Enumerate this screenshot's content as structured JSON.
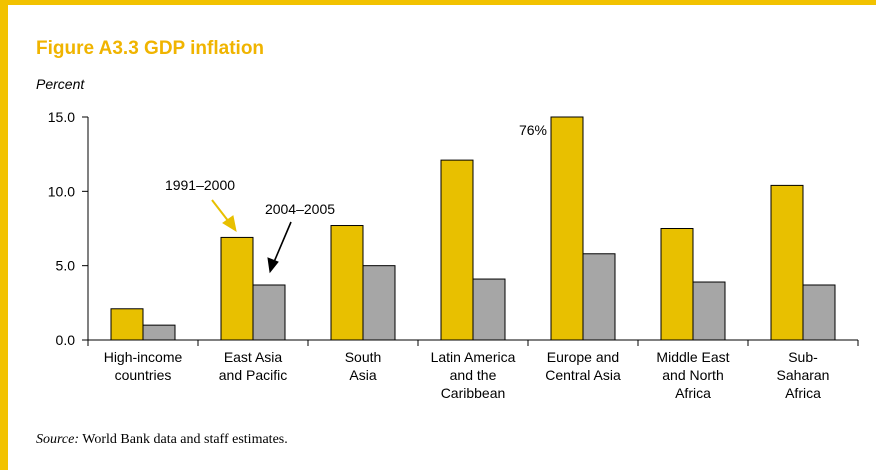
{
  "figure": {
    "title": "Figure A3.3  GDP inflation",
    "unit": "Percent",
    "source_label": "Source:",
    "source_text": " World Bank data and staff estimates."
  },
  "chart_data": {
    "type": "bar",
    "categories": [
      [
        "High-income",
        "countries"
      ],
      [
        "East Asia",
        "and Pacific"
      ],
      [
        "South",
        "Asia"
      ],
      [
        "Latin America",
        "and the",
        "Caribbean"
      ],
      [
        "Europe and",
        "Central Asia"
      ],
      [
        "Middle East",
        "and North",
        "Africa"
      ],
      [
        "Sub-",
        "Saharan",
        "Africa"
      ]
    ],
    "series": [
      {
        "name": "1991–2000",
        "color": "#E8C000",
        "values": [
          2.1,
          6.9,
          7.7,
          12.1,
          15.0,
          7.5,
          10.4
        ]
      },
      {
        "name": "2004–2005",
        "color": "#A6A6A6",
        "values": [
          1.0,
          3.7,
          5.0,
          4.1,
          5.8,
          3.9,
          3.7
        ]
      }
    ],
    "ylim": [
      0,
      15
    ],
    "yticks": [
      "0.0",
      "5.0",
      "10.0",
      "15.0"
    ],
    "ytick_values": [
      0,
      5,
      10,
      15
    ],
    "annotations": {
      "overflow_value": "76%",
      "callout_series1": "1991–2000",
      "callout_series2": "2004–2005"
    }
  }
}
